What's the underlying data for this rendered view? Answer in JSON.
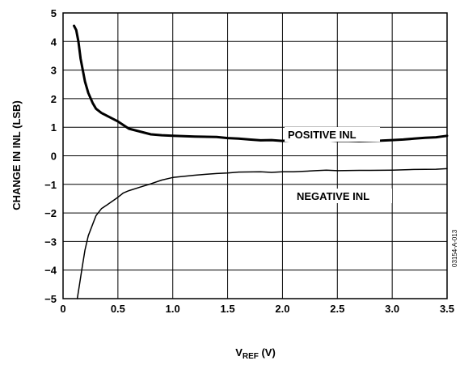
{
  "chart_data": {
    "type": "line",
    "xlabel_main": "V",
    "xlabel_sub": "REF",
    "xlabel_unit": " (V)",
    "ylabel": "CHANGE IN INL (LSB)",
    "xlim": [
      0,
      3.5
    ],
    "ylim": [
      -5,
      5
    ],
    "x_ticks": [
      0,
      0.5,
      1.0,
      1.5,
      2.0,
      2.5,
      3.0,
      3.5
    ],
    "x_tick_labels": [
      "0",
      "0.5",
      "1.0",
      "1.5",
      "2.0",
      "2.5",
      "3.0",
      "3.5"
    ],
    "y_ticks": [
      5,
      4,
      3,
      2,
      1,
      0,
      -1,
      -2,
      -3,
      -4,
      -5
    ],
    "y_tick_labels": [
      "5",
      "4",
      "3",
      "2",
      "1",
      "0",
      "−1",
      "−2",
      "−3",
      "−4",
      "−5"
    ],
    "grid": true,
    "series": [
      {
        "name": "POSITIVE INL",
        "style": "thick",
        "points": [
          [
            0.1,
            4.55
          ],
          [
            0.12,
            4.4
          ],
          [
            0.14,
            4.0
          ],
          [
            0.16,
            3.4
          ],
          [
            0.18,
            3.0
          ],
          [
            0.2,
            2.6
          ],
          [
            0.23,
            2.2
          ],
          [
            0.27,
            1.85
          ],
          [
            0.3,
            1.65
          ],
          [
            0.35,
            1.5
          ],
          [
            0.4,
            1.4
          ],
          [
            0.5,
            1.2
          ],
          [
            0.6,
            0.95
          ],
          [
            0.7,
            0.85
          ],
          [
            0.8,
            0.75
          ],
          [
            0.9,
            0.72
          ],
          [
            1.0,
            0.7
          ],
          [
            1.2,
            0.67
          ],
          [
            1.4,
            0.66
          ],
          [
            1.5,
            0.62
          ],
          [
            1.6,
            0.6
          ],
          [
            1.7,
            0.57
          ],
          [
            1.8,
            0.54
          ],
          [
            1.9,
            0.55
          ],
          [
            2.0,
            0.52
          ],
          [
            2.1,
            0.55
          ],
          [
            2.2,
            0.57
          ],
          [
            2.3,
            0.57
          ],
          [
            2.4,
            0.55
          ],
          [
            2.5,
            0.52
          ],
          [
            2.6,
            0.52
          ],
          [
            2.7,
            0.51
          ],
          [
            2.8,
            0.52
          ],
          [
            2.9,
            0.53
          ],
          [
            3.0,
            0.55
          ],
          [
            3.1,
            0.57
          ],
          [
            3.2,
            0.6
          ],
          [
            3.3,
            0.63
          ],
          [
            3.4,
            0.65
          ],
          [
            3.5,
            0.7
          ]
        ]
      },
      {
        "name": "NEGATIVE INL",
        "style": "thin",
        "points": [
          [
            0.13,
            -5.0
          ],
          [
            0.15,
            -4.5
          ],
          [
            0.17,
            -4.0
          ],
          [
            0.2,
            -3.3
          ],
          [
            0.23,
            -2.8
          ],
          [
            0.27,
            -2.4
          ],
          [
            0.3,
            -2.1
          ],
          [
            0.35,
            -1.85
          ],
          [
            0.4,
            -1.72
          ],
          [
            0.5,
            -1.45
          ],
          [
            0.55,
            -1.3
          ],
          [
            0.6,
            -1.22
          ],
          [
            0.7,
            -1.1
          ],
          [
            0.8,
            -0.98
          ],
          [
            0.9,
            -0.85
          ],
          [
            1.0,
            -0.76
          ],
          [
            1.1,
            -0.72
          ],
          [
            1.2,
            -0.68
          ],
          [
            1.3,
            -0.65
          ],
          [
            1.4,
            -0.62
          ],
          [
            1.5,
            -0.6
          ],
          [
            1.6,
            -0.57
          ],
          [
            1.8,
            -0.56
          ],
          [
            1.9,
            -0.58
          ],
          [
            2.0,
            -0.56
          ],
          [
            2.1,
            -0.56
          ],
          [
            2.2,
            -0.54
          ],
          [
            2.3,
            -0.52
          ],
          [
            2.4,
            -0.5
          ],
          [
            2.5,
            -0.52
          ],
          [
            2.7,
            -0.51
          ],
          [
            2.8,
            -0.51
          ],
          [
            3.0,
            -0.5
          ],
          [
            3.2,
            -0.48
          ],
          [
            3.4,
            -0.47
          ],
          [
            3.5,
            -0.45
          ]
        ]
      }
    ],
    "watermark": "03154-A-013"
  }
}
